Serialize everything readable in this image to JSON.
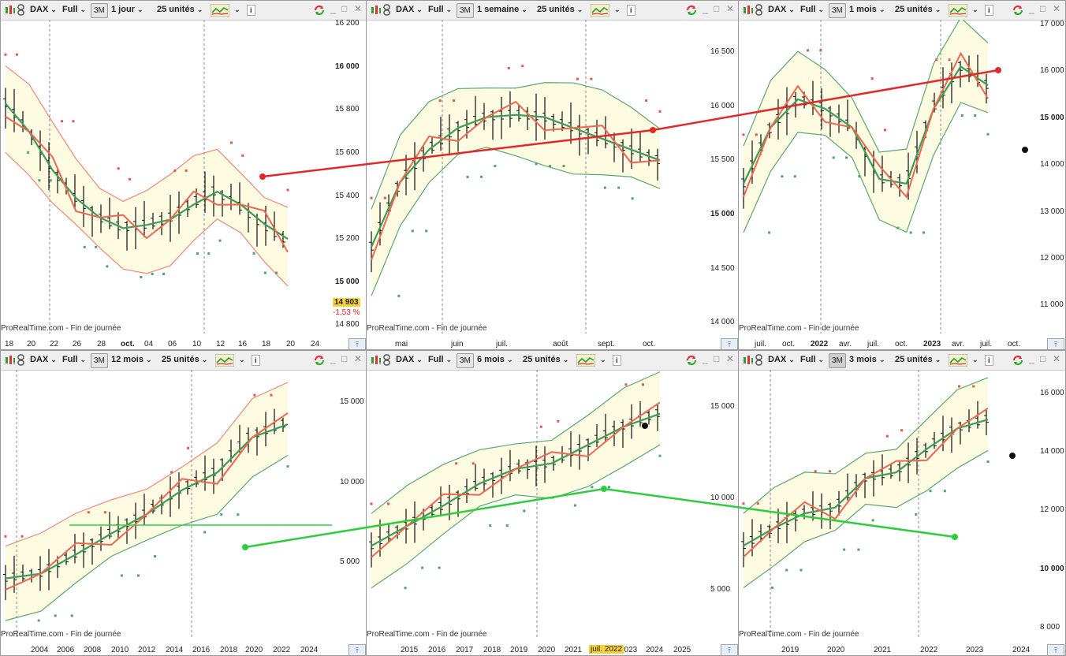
{
  "panels": [
    {
      "id": "p1",
      "symbol": "DAX",
      "mode": "Full",
      "btn3m": "3M",
      "btn3m_active": false,
      "period": "1 jour",
      "units": "25 unités",
      "info": "i",
      "footer": "ProRealTime.com - Fin de journée",
      "yticks": [
        {
          "v": 16200,
          "t": "16 200",
          "b": false
        },
        {
          "v": 16000,
          "t": "16 000",
          "b": true
        },
        {
          "v": 15800,
          "t": "15 800",
          "b": false
        },
        {
          "v": 15600,
          "t": "15 600",
          "b": false
        },
        {
          "v": 15400,
          "t": "15 400",
          "b": false
        },
        {
          "v": 15200,
          "t": "15 200",
          "b": false
        },
        {
          "v": 15000,
          "t": "15 000",
          "b": true
        },
        {
          "v": 14800,
          "t": "14 800",
          "b": false
        }
      ],
      "xticks": [
        "18",
        "20",
        "22",
        "26",
        "28",
        "oct.",
        "04",
        "06",
        "10",
        "12",
        "16",
        "18",
        "20",
        "24"
      ],
      "price_tag": "14 903",
      "change_tag": "-1,53 %"
    },
    {
      "id": "p2",
      "symbol": "DAX",
      "mode": "Full",
      "btn3m": "3M",
      "btn3m_active": false,
      "period": "1 semaine",
      "units": "25 unités",
      "info": "i",
      "footer": "ProRealTime.com - Fin de journée",
      "yticks": [
        {
          "v": 16500,
          "t": "16 500",
          "b": false
        },
        {
          "v": 16000,
          "t": "16 000",
          "b": false
        },
        {
          "v": 15500,
          "t": "15 500",
          "b": false
        },
        {
          "v": 15000,
          "t": "15 000",
          "b": true
        },
        {
          "v": 14500,
          "t": "14 500",
          "b": false
        },
        {
          "v": 14000,
          "t": "14 000",
          "b": false
        }
      ],
      "xticks": [
        "mai",
        "juin",
        "juil.",
        "août",
        "sept.",
        "oct."
      ]
    },
    {
      "id": "p3",
      "symbol": "DAX",
      "mode": "Full",
      "btn3m": "3M",
      "btn3m_active": false,
      "period": "1 mois",
      "units": "25 unités",
      "info": "i",
      "footer": "ProRealTime.com - Fin de journée",
      "yticks": [
        {
          "v": 17000,
          "t": "17 000",
          "b": false
        },
        {
          "v": 16000,
          "t": "16 000",
          "b": false
        },
        {
          "v": 15000,
          "t": "15 000",
          "b": true
        },
        {
          "v": 14000,
          "t": "14 000",
          "b": false
        },
        {
          "v": 13000,
          "t": "13 000",
          "b": false
        },
        {
          "v": 12000,
          "t": "12 000",
          "b": false
        },
        {
          "v": 11000,
          "t": "11 000",
          "b": false
        }
      ],
      "xticks": [
        "juil.",
        "oct.",
        "2022",
        "avr.",
        "juil.",
        "oct.",
        "2023",
        "avr.",
        "juil.",
        "oct."
      ]
    },
    {
      "id": "p4",
      "symbol": "DAX",
      "mode": "Full",
      "btn3m": "3M",
      "btn3m_active": false,
      "period": "12 mois",
      "units": "25 unités",
      "info": "i",
      "footer": "ProRealTime.com - Fin de journée",
      "yticks": [
        {
          "v": 15000,
          "t": "15 000",
          "b": false
        },
        {
          "v": 10000,
          "t": "10 000",
          "b": false
        },
        {
          "v": 5000,
          "t": "5 000",
          "b": false
        }
      ],
      "xticks": [
        "2004",
        "2006",
        "2008",
        "2010",
        "2012",
        "2014",
        "2016",
        "2018",
        "2020",
        "2022",
        "2024"
      ]
    },
    {
      "id": "p5",
      "symbol": "DAX",
      "mode": "Full",
      "btn3m": "3M",
      "btn3m_active": false,
      "period": "6 mois",
      "units": "25 unités",
      "info": "i",
      "footer": "ProRealTime.com - Fin de journée",
      "yticks": [
        {
          "v": 15000,
          "t": "15 000",
          "b": false
        },
        {
          "v": 10000,
          "t": "10 000",
          "b": false
        },
        {
          "v": 5000,
          "t": "5 000",
          "b": false
        }
      ],
      "xticks": [
        "2015",
        "2016",
        "2017",
        "2018",
        "2019",
        "2020",
        "2021",
        "2022",
        "2023",
        "2024",
        "2025"
      ],
      "cursor_label": "juil. 2022"
    },
    {
      "id": "p6",
      "symbol": "DAX",
      "mode": "Full",
      "btn3m": "3M",
      "btn3m_active": true,
      "period": "3 mois",
      "units": "25 unités",
      "info": "i",
      "footer": "ProRealTime.com - Fin de journée",
      "yticks": [
        {
          "v": 16000,
          "t": "16 000",
          "b": false
        },
        {
          "v": 14000,
          "t": "14 000",
          "b": false
        },
        {
          "v": 12000,
          "t": "12 000",
          "b": false
        },
        {
          "v": 10000,
          "t": "10 000",
          "b": true
        },
        {
          "v": 8000,
          "t": "8 000",
          "b": false
        }
      ],
      "xticks": [
        "2019",
        "2020",
        "2021",
        "2022",
        "2023",
        "2024"
      ]
    }
  ],
  "colors": {
    "band_fill": "#fdfbe1",
    "band_line": "#5aa86e",
    "ma_green": "#3f9b59",
    "ma_red": "#ef6650",
    "band_red": "#f08878",
    "sar_red": "#e0584a",
    "sar_green": "#4fa371",
    "bar": "#111111",
    "trend_red": "#e02929",
    "trend_green": "#2fcc3f",
    "price_tag_bg": "#f6d13a"
  },
  "chart_data": [
    {
      "type": "line",
      "panel": "p1",
      "series": [
        {
          "values": [
            15830,
            15700,
            15520,
            15390,
            15300,
            15250,
            15265,
            15290,
            15360,
            15420,
            15360,
            15270,
            15200
          ]
        }
      ],
      "ylim": [
        14760,
        16220
      ]
    },
    {
      "type": "line",
      "panel": "p2",
      "series": [
        {
          "values": [
            14700,
            15300,
            15600,
            15800,
            15900,
            15920,
            15900,
            15800,
            15700,
            15600,
            15500
          ]
        }
      ],
      "ylim": [
        13900,
        16800
      ]
    },
    {
      "type": "line",
      "panel": "p3",
      "series": [
        {
          "values": [
            13600,
            14800,
            15400,
            15200,
            14800,
            13700,
            13600,
            15200,
            16100,
            15700
          ]
        }
      ],
      "ylim": [
        10400,
        17100
      ]
    },
    {
      "type": "line",
      "panel": "p4",
      "series": [
        {
          "values": [
            4000,
            4300,
            5500,
            6800,
            8000,
            9500,
            10600,
            12800,
            13600
          ]
        }
      ],
      "ylim": [
        200,
        17000
      ]
    },
    {
      "type": "line",
      "panel": "p5",
      "series": [
        {
          "values": [
            7400,
            8500,
            9600,
            10800,
            11600,
            11900,
            12900,
            13900,
            14600
          ]
        }
      ],
      "ylim": [
        2300,
        17000
      ]
    },
    {
      "type": "line",
      "panel": "p6",
      "series": [
        {
          "values": [
            10800,
            11400,
            11900,
            12100,
            13100,
            13300,
            14100,
            14800,
            15100
          ]
        }
      ],
      "ylim": [
        7600,
        16800
      ]
    }
  ]
}
